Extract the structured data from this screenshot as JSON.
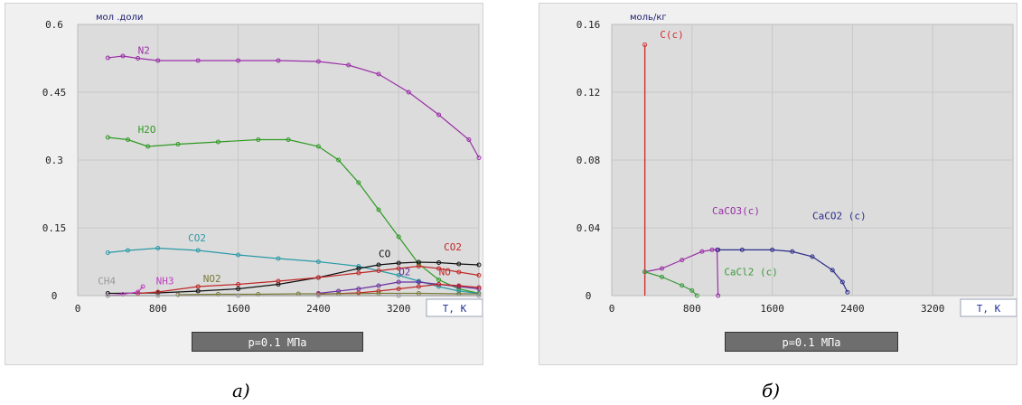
{
  "captions": {
    "left": "а)",
    "right": "б)"
  },
  "chart_data": [
    {
      "type": "scatter",
      "ylabel": "мол .доли",
      "xlabel": "T,  K",
      "footer": "p=0.1 МПа",
      "xlim": [
        0,
        4000
      ],
      "ylim": [
        0,
        0.6
      ],
      "xticks": [
        0,
        800,
        1600,
        2400,
        3200
      ],
      "yticks": [
        0,
        0.15,
        0.3,
        0.45,
        0.6
      ],
      "ytick_labels": [
        "0",
        "0.15",
        "0.3",
        "0.45",
        "0.6"
      ],
      "grid": true,
      "series": [
        {
          "name": "N2",
          "color": "#9a2fa8",
          "label_at": [
            600,
            0.535
          ],
          "x": [
            300,
            450,
            600,
            800,
            1200,
            1600,
            2000,
            2400,
            2700,
            3000,
            3300,
            3600,
            3900,
            4000
          ],
          "y": [
            0.526,
            0.53,
            0.525,
            0.52,
            0.52,
            0.52,
            0.52,
            0.518,
            0.51,
            0.49,
            0.45,
            0.4,
            0.345,
            0.305
          ]
        },
        {
          "name": "H2O",
          "color": "#2e9a22",
          "label_at": [
            600,
            0.36
          ],
          "x": [
            300,
            500,
            700,
            1000,
            1400,
            1800,
            2100,
            2400,
            2600,
            2800,
            3000,
            3200,
            3400,
            3600,
            3800,
            4000
          ],
          "y": [
            0.35,
            0.345,
            0.33,
            0.335,
            0.34,
            0.345,
            0.345,
            0.33,
            0.3,
            0.25,
            0.19,
            0.13,
            0.07,
            0.035,
            0.015,
            0.005
          ]
        },
        {
          "name": "CO2",
          "color": "#2a9aa6",
          "label_at": [
            1100,
            0.12
          ],
          "x": [
            300,
            500,
            800,
            1200,
            1600,
            2000,
            2400,
            2800,
            3200,
            3400,
            3600,
            3800,
            4000
          ],
          "y": [
            0.095,
            0.1,
            0.105,
            0.1,
            0.09,
            0.082,
            0.075,
            0.065,
            0.045,
            0.032,
            0.02,
            0.01,
            0.005
          ]
        },
        {
          "name": "CO",
          "color": "#111111",
          "label_at": [
            3000,
            0.085
          ],
          "x": [
            300,
            800,
            1200,
            1600,
            2000,
            2400,
            2800,
            3000,
            3200,
            3400,
            3600,
            3800,
            4000
          ],
          "y": [
            0.005,
            0.006,
            0.01,
            0.015,
            0.025,
            0.04,
            0.06,
            0.068,
            0.072,
            0.074,
            0.073,
            0.07,
            0.068
          ]
        },
        {
          "name": "CO2",
          "color": "#c02828",
          "label_at": [
            3650,
            0.1
          ],
          "x": [
            600,
            800,
            1200,
            1600,
            2000,
            2400,
            2800,
            3000,
            3200,
            3400,
            3600,
            3800,
            4000
          ],
          "y": [
            0.005,
            0.008,
            0.02,
            0.025,
            0.032,
            0.04,
            0.05,
            0.055,
            0.06,
            0.065,
            0.06,
            0.052,
            0.045
          ]
        },
        {
          "name": "O2",
          "color": "#6a2fa0",
          "label_at": [
            3200,
            0.045
          ],
          "x": [
            2400,
            2600,
            2800,
            3000,
            3200,
            3400,
            3600,
            3800,
            4000
          ],
          "y": [
            0.005,
            0.01,
            0.015,
            0.022,
            0.03,
            0.03,
            0.025,
            0.02,
            0.015
          ]
        },
        {
          "name": "NO",
          "color": "#c02828",
          "label_at": [
            3600,
            0.045
          ],
          "x": [
            2400,
            2800,
            3000,
            3200,
            3400,
            3600,
            3800,
            4000
          ],
          "y": [
            0.003,
            0.006,
            0.01,
            0.015,
            0.02,
            0.025,
            0.022,
            0.018
          ]
        },
        {
          "name": "NO2",
          "color": "#7a7a3a",
          "label_at": [
            1250,
            0.03
          ],
          "x": [
            1000,
            1400,
            1800,
            2200,
            2600,
            3000,
            3400,
            3800,
            4000
          ],
          "y": [
            0.002,
            0.003,
            0.003,
            0.004,
            0.004,
            0.005,
            0.005,
            0.004,
            0.004
          ]
        },
        {
          "name": "NH3",
          "color": "#c040c0",
          "label_at": [
            780,
            0.025
          ],
          "x": [
            300,
            450,
            600,
            650
          ],
          "y": [
            0.0,
            0.003,
            0.008,
            0.02
          ]
        },
        {
          "name": "CH4",
          "color": "#999999",
          "label_at": [
            200,
            0.025
          ],
          "x": [
            300,
            800,
            1600,
            2400,
            3200,
            4000
          ],
          "y": [
            0.0,
            0.0,
            0.0,
            0.0,
            0.0,
            0.0
          ]
        }
      ]
    },
    {
      "type": "scatter",
      "ylabel": "моль/кг",
      "xlabel": "T,  K",
      "footer": "p=0.1 МПа",
      "xlim": [
        0,
        4000
      ],
      "ylim": [
        0,
        0.16
      ],
      "xticks": [
        0,
        800,
        1600,
        2400,
        3200
      ],
      "yticks": [
        0,
        0.04,
        0.08,
        0.12,
        0.16
      ],
      "ytick_labels": [
        "0",
        "0.04",
        "0.08",
        "0.12",
        "0.16"
      ],
      "grid": true,
      "series": [
        {
          "name": "C(c)",
          "color": "#d03030",
          "label_at": [
            480,
            0.152
          ],
          "x": [
            330,
            330
          ],
          "y": [
            0.0,
            0.148
          ],
          "style": "line"
        },
        {
          "name": "CaCO3(c)",
          "color": "#9a2fa8",
          "label_at": [
            1000,
            0.048
          ],
          "x": [
            330,
            500,
            700,
            900,
            1000,
            1050,
            1060
          ],
          "y": [
            0.014,
            0.016,
            0.021,
            0.026,
            0.027,
            0.027,
            0.0
          ]
        },
        {
          "name": "CaCO2 (c)",
          "color": "#2c2c8a",
          "label_at": [
            2000,
            0.045
          ],
          "x": [
            1060,
            1300,
            1600,
            1800,
            2000,
            2200,
            2300,
            2350
          ],
          "y": [
            0.027,
            0.027,
            0.027,
            0.026,
            0.023,
            0.015,
            0.008,
            0.002
          ]
        },
        {
          "name": "CaCl2 (c)",
          "color": "#3a9a3a",
          "label_at": [
            1120,
            0.012
          ],
          "x": [
            330,
            500,
            700,
            800,
            850
          ],
          "y": [
            0.014,
            0.011,
            0.006,
            0.003,
            0.0
          ]
        }
      ]
    }
  ]
}
